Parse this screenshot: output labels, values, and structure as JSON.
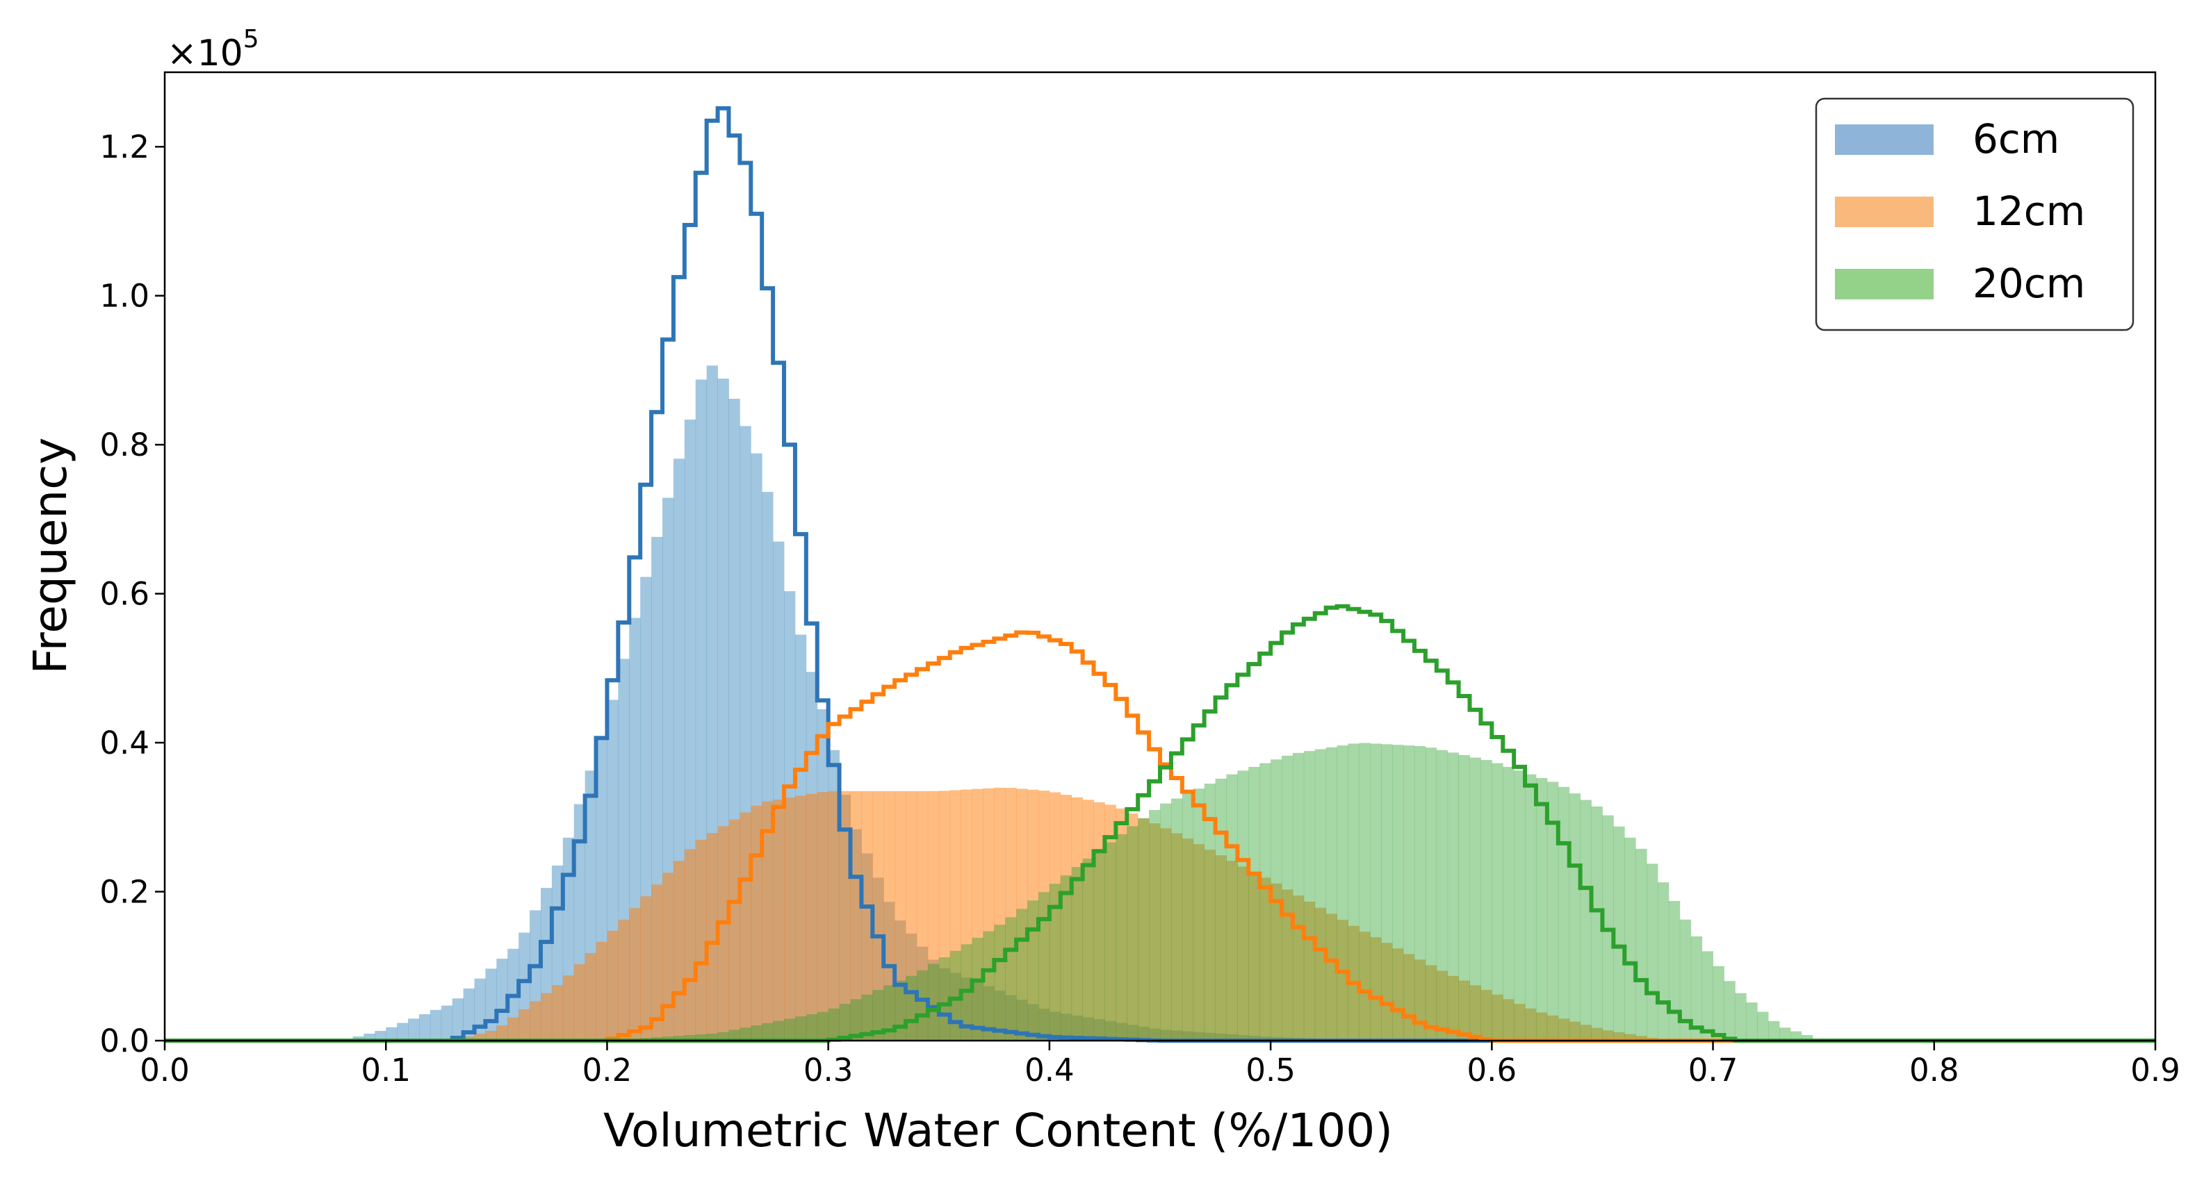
{
  "chart_data": {
    "type": "histogram",
    "xlabel": "Volumetric Water Content (%/100)",
    "ylabel": "Frequency",
    "y_scale_label": "×10",
    "y_scale_exponent": "5",
    "xlim": [
      0.0,
      0.9
    ],
    "ylim": [
      0,
      130000
    ],
    "x_ticks": [
      "0.0",
      "0.1",
      "0.2",
      "0.3",
      "0.4",
      "0.5",
      "0.6",
      "0.7",
      "0.8",
      "0.9"
    ],
    "y_ticks": [
      "0.0",
      "0.2",
      "0.4",
      "0.6",
      "0.8",
      "1.0",
      "1.2"
    ],
    "grid": false,
    "legend": {
      "position": "top-right",
      "entries": [
        {
          "label": "6cm",
          "color": "#8fb4d9"
        },
        {
          "label": "12cm",
          "color": "#f9b97c"
        },
        {
          "label": "20cm",
          "color": "#94d28a"
        }
      ]
    },
    "filled_series": [
      {
        "name": "6cm",
        "color": "#1f77b4",
        "opacity": 0.42,
        "points": [
          [
            0.08,
            0
          ],
          [
            0.1,
            1500
          ],
          [
            0.13,
            5000
          ],
          [
            0.16,
            13000
          ],
          [
            0.18,
            25000
          ],
          [
            0.2,
            43000
          ],
          [
            0.22,
            65000
          ],
          [
            0.24,
            86000
          ],
          [
            0.245,
            91500
          ],
          [
            0.255,
            88000
          ],
          [
            0.27,
            77000
          ],
          [
            0.285,
            57000
          ],
          [
            0.3,
            42000
          ],
          [
            0.31,
            30000
          ],
          [
            0.33,
            17000
          ],
          [
            0.35,
            10000
          ],
          [
            0.4,
            4000
          ],
          [
            0.45,
            1500
          ],
          [
            0.5,
            500
          ],
          [
            0.55,
            0
          ]
        ]
      },
      {
        "name": "12cm",
        "color": "#ff7f0e",
        "opacity": 0.52,
        "points": [
          [
            0.13,
            0
          ],
          [
            0.15,
            1500
          ],
          [
            0.18,
            8000
          ],
          [
            0.21,
            17000
          ],
          [
            0.24,
            26500
          ],
          [
            0.27,
            32000
          ],
          [
            0.3,
            33500
          ],
          [
            0.35,
            33500
          ],
          [
            0.38,
            34000
          ],
          [
            0.4,
            33500
          ],
          [
            0.43,
            31500
          ],
          [
            0.46,
            27500
          ],
          [
            0.5,
            21500
          ],
          [
            0.54,
            15000
          ],
          [
            0.58,
            9000
          ],
          [
            0.62,
            4000
          ],
          [
            0.65,
            1500
          ],
          [
            0.68,
            0
          ]
        ]
      },
      {
        "name": "20cm",
        "color": "#2ca02c",
        "opacity": 0.42,
        "points": [
          [
            0.2,
            0
          ],
          [
            0.25,
            1000
          ],
          [
            0.3,
            4000
          ],
          [
            0.34,
            9000
          ],
          [
            0.38,
            16000
          ],
          [
            0.42,
            25000
          ],
          [
            0.45,
            31500
          ],
          [
            0.48,
            35500
          ],
          [
            0.51,
            38500
          ],
          [
            0.54,
            40000
          ],
          [
            0.57,
            39500
          ],
          [
            0.6,
            37500
          ],
          [
            0.63,
            34500
          ],
          [
            0.65,
            31000
          ],
          [
            0.67,
            25000
          ],
          [
            0.69,
            15000
          ],
          [
            0.71,
            7000
          ],
          [
            0.73,
            2000
          ],
          [
            0.75,
            0
          ]
        ]
      }
    ],
    "step_series": [
      {
        "name": "6cm",
        "color": "#2e75b6",
        "points": [
          [
            0.13,
            0
          ],
          [
            0.15,
            3000
          ],
          [
            0.17,
            11000
          ],
          [
            0.19,
            29000
          ],
          [
            0.21,
            60000
          ],
          [
            0.23,
            99000
          ],
          [
            0.25,
            127000
          ],
          [
            0.265,
            116000
          ],
          [
            0.28,
            86000
          ],
          [
            0.295,
            50000
          ],
          [
            0.31,
            24000
          ],
          [
            0.33,
            8000
          ],
          [
            0.36,
            2000
          ],
          [
            0.4,
            500
          ],
          [
            0.45,
            0
          ]
        ]
      },
      {
        "name": "12cm",
        "color": "#ff7f0e",
        "points": [
          [
            0.2,
            0
          ],
          [
            0.22,
            2000
          ],
          [
            0.24,
            9000
          ],
          [
            0.26,
            20000
          ],
          [
            0.28,
            33000
          ],
          [
            0.3,
            42000
          ],
          [
            0.33,
            48000
          ],
          [
            0.36,
            52500
          ],
          [
            0.39,
            55000
          ],
          [
            0.41,
            53000
          ],
          [
            0.43,
            47000
          ],
          [
            0.45,
            38000
          ],
          [
            0.48,
            27000
          ],
          [
            0.51,
            16000
          ],
          [
            0.54,
            7000
          ],
          [
            0.57,
            2000
          ],
          [
            0.6,
            0
          ]
        ]
      },
      {
        "name": "20cm",
        "color": "#2ca02c",
        "points": [
          [
            0.3,
            0
          ],
          [
            0.33,
            1500
          ],
          [
            0.36,
            6000
          ],
          [
            0.4,
            17000
          ],
          [
            0.44,
            32000
          ],
          [
            0.48,
            47000
          ],
          [
            0.51,
            55500
          ],
          [
            0.53,
            58500
          ],
          [
            0.55,
            57000
          ],
          [
            0.58,
            49000
          ],
          [
            0.61,
            38000
          ],
          [
            0.63,
            28000
          ],
          [
            0.65,
            16000
          ],
          [
            0.67,
            7000
          ],
          [
            0.69,
            2000
          ],
          [
            0.71,
            0
          ]
        ]
      }
    ]
  }
}
